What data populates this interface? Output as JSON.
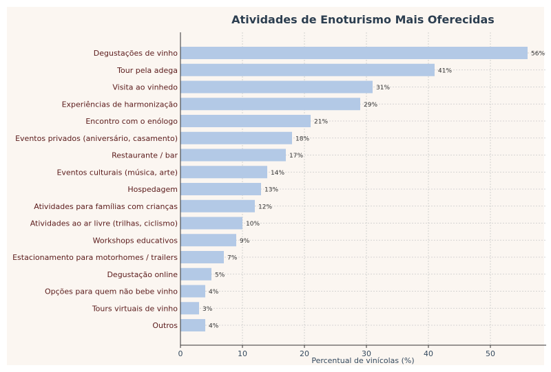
{
  "chart_data": {
    "type": "bar",
    "orientation": "horizontal",
    "title": "Atividades de Enoturismo Mais Oferecidas",
    "xlabel": "Percentual de vinícolas (%)",
    "ylabel": "",
    "xlim": [
      0,
      59
    ],
    "xticks": [
      0,
      10,
      20,
      30,
      40,
      50
    ],
    "grid": true,
    "categories": [
      "Degustações de vinho",
      "Tour pela adega",
      "Visita ao vinhedo",
      "Experiências de harmonização",
      "Encontro com o enólogo",
      "Eventos privados (aniversário, casamento)",
      "Restaurante / bar",
      "Eventos culturais (música, arte)",
      "Hospedagem",
      "Atividades para famílias com crianças",
      "Atividades ao ar livre (trilhas, ciclismo)",
      "Workshops educativos",
      "Estacionamento para motorhomes / trailers",
      "Degustação online",
      "Opções para quem não bebe vinho",
      "Tours virtuais de vinho",
      "Outros"
    ],
    "values": [
      56,
      41,
      31,
      29,
      21,
      18,
      17,
      14,
      13,
      12,
      10,
      9,
      7,
      5,
      4,
      3,
      4
    ],
    "value_labels": [
      "56%",
      "41%",
      "31%",
      "29%",
      "21%",
      "18%",
      "17%",
      "14%",
      "13%",
      "12%",
      "10%",
      "9%",
      "7%",
      "5%",
      "4%",
      "3%",
      "4%"
    ]
  },
  "colors": {
    "bar": "#b3c9e6",
    "plot_background": "#fbf6f1",
    "category_label": "#5a1a1a",
    "title": "#2c3e50",
    "axis_label": "#34495e",
    "value_label": "#333333",
    "grid": "#c8c8c8",
    "axis": "#333333"
  }
}
